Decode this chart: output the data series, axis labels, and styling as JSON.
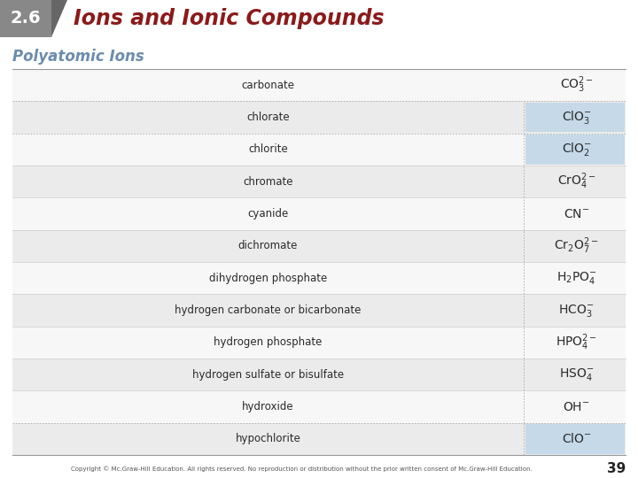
{
  "title_number": "2.6",
  "title_text": "Ions and Ionic Compounds",
  "subtitle": "Polyatomic Ions",
  "title_color": "#8b1a1a",
  "subtitle_color": "#6b8cae",
  "bg_color": "#ffffff",
  "num_box_color": "#888888",
  "triangle_color": "#666666",
  "row_alt_color": "#ebebeb",
  "row_white_color": "#f7f7f7",
  "highlight_color": "#c5d9e8",
  "border_color": "#aaaaaa",
  "footer_text": "Copyright © Mc.Graw-Hill Education. All rights reserved. No reproduction or distribution without the prior written consent of Mc.Graw-Hill Education.",
  "page_number": "39",
  "rows": [
    {
      "name": "carbonate",
      "formula_main": "CO",
      "formula_sub": "3",
      "formula_sup": "2−",
      "highlight": false,
      "dotted_top": false
    },
    {
      "name": "chlorate",
      "formula_main": "ClO",
      "formula_sub": "3",
      "formula_sup": "−",
      "highlight": true,
      "dotted_top": true
    },
    {
      "name": "chlorite",
      "formula_main": "ClO",
      "formula_sub": "2",
      "formula_sup": "−",
      "highlight": true,
      "dotted_top": true
    },
    {
      "name": "chromate",
      "formula_main": "CrO",
      "formula_sub": "4",
      "formula_sup": "2−",
      "highlight": false,
      "dotted_top": false
    },
    {
      "name": "cyanide",
      "formula_main": "CN",
      "formula_sub": "",
      "formula_sup": "−",
      "highlight": false,
      "dotted_top": false
    },
    {
      "name": "dichromate",
      "formula_main": "Cr₂O",
      "formula_sub": "7",
      "formula_sup": "2−",
      "highlight": false,
      "dotted_top": false
    },
    {
      "name": "dihydrogen phosphate",
      "formula_main": "H₂PO",
      "formula_sub": "4",
      "formula_sup": "−",
      "highlight": false,
      "dotted_top": false
    },
    {
      "name": "hydrogen carbonate or bicarbonate",
      "formula_main": "HCO",
      "formula_sub": "3",
      "formula_sup": "−",
      "highlight": false,
      "dotted_top": false
    },
    {
      "name": "hydrogen phosphate",
      "formula_main": "HPO",
      "formula_sub": "4",
      "formula_sup": "2−",
      "highlight": false,
      "dotted_top": false
    },
    {
      "name": "hydrogen sulfate or bisulfate",
      "formula_main": "HSO",
      "formula_sub": "4",
      "formula_sup": "−",
      "highlight": false,
      "dotted_top": false
    },
    {
      "name": "hydroxide",
      "formula_main": "OH",
      "formula_sub": "",
      "formula_sup": "−",
      "highlight": false,
      "dotted_top": false
    },
    {
      "name": "hypochlorite",
      "formula_main": "ClO",
      "formula_sub": "",
      "formula_sup": "−",
      "highlight": true,
      "dotted_top": true
    }
  ]
}
